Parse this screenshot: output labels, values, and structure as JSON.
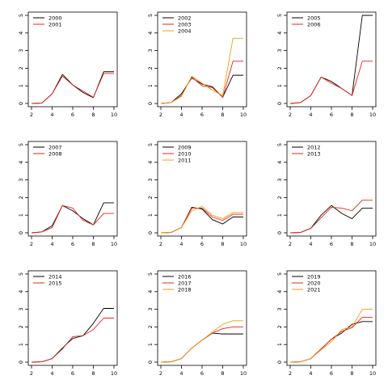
{
  "colors": {
    "black": "#000000",
    "red": "#e8241b",
    "orange": "#f39c12"
  },
  "chart_data": [
    {
      "type": "line",
      "x": [
        2,
        3,
        4,
        5,
        6,
        7,
        8,
        9,
        10
      ],
      "xlim": [
        2,
        10
      ],
      "ylim": [
        0,
        5
      ],
      "xticks": [
        "2",
        "4",
        "6",
        "8",
        "10"
      ],
      "yticks": [
        "0",
        "1",
        "2",
        "3",
        "4",
        "5"
      ],
      "legend": "top-left",
      "series": [
        {
          "name": "2000",
          "color": "#000000",
          "values": [
            0,
            0.02,
            0.55,
            1.65,
            1.05,
            0.62,
            0.33,
            1.8,
            1.8
          ]
        },
        {
          "name": "2001",
          "color": "#e8241b",
          "values": [
            0,
            0.02,
            0.55,
            1.55,
            1.05,
            0.7,
            0.35,
            1.7,
            1.7
          ]
        }
      ]
    },
    {
      "type": "line",
      "x": [
        2,
        3,
        4,
        5,
        6,
        7,
        8,
        9,
        10
      ],
      "xlim": [
        2,
        10
      ],
      "ylim": [
        0,
        5
      ],
      "xticks": [
        "2",
        "4",
        "6",
        "8",
        "10"
      ],
      "yticks": [
        "0",
        "1",
        "2",
        "3",
        "4",
        "5"
      ],
      "legend": "top-left",
      "series": [
        {
          "name": "2002",
          "color": "#000000",
          "values": [
            0,
            0.05,
            0.55,
            1.45,
            1.1,
            0.95,
            0.35,
            1.6,
            1.6
          ]
        },
        {
          "name": "2003",
          "color": "#e8241b",
          "values": [
            0,
            0.05,
            0.45,
            1.5,
            1.0,
            0.9,
            0.35,
            2.4,
            2.4
          ]
        },
        {
          "name": "2004",
          "color": "#f39c12",
          "values": [
            0,
            0.05,
            0.4,
            1.55,
            1.15,
            0.75,
            0.45,
            3.7,
            3.7
          ]
        }
      ]
    },
    {
      "type": "line",
      "x": [
        2,
        3,
        4,
        5,
        6,
        7,
        8,
        9,
        10
      ],
      "xlim": [
        2,
        10
      ],
      "ylim": [
        0,
        5
      ],
      "xticks": [
        "2",
        "4",
        "6",
        "8",
        "10"
      ],
      "yticks": [
        "0",
        "1",
        "2",
        "3",
        "4",
        "5"
      ],
      "legend": "top-left",
      "series": [
        {
          "name": "2005",
          "color": "#000000",
          "values": [
            0,
            0.05,
            0.45,
            1.5,
            1.25,
            0.85,
            0.45,
            5.0,
            5.0
          ]
        },
        {
          "name": "2006",
          "color": "#e8241b",
          "values": [
            0,
            0.05,
            0.45,
            1.5,
            1.15,
            0.85,
            0.45,
            2.4,
            2.4
          ]
        }
      ]
    },
    {
      "type": "line",
      "x": [
        2,
        3,
        4,
        5,
        6,
        7,
        8,
        9,
        10
      ],
      "xlim": [
        2,
        10
      ],
      "ylim": [
        0,
        5
      ],
      "xticks": [
        "2",
        "4",
        "6",
        "8",
        "10"
      ],
      "yticks": [
        "0",
        "1",
        "2",
        "3",
        "4",
        "5"
      ],
      "legend": "top-left",
      "series": [
        {
          "name": "2007",
          "color": "#000000",
          "values": [
            0,
            0.05,
            0.4,
            1.55,
            1.25,
            0.8,
            0.45,
            1.7,
            1.7
          ]
        },
        {
          "name": "2008",
          "color": "#e8241b",
          "values": [
            0,
            0.05,
            0.3,
            1.55,
            1.4,
            0.7,
            0.45,
            1.1,
            1.1
          ]
        }
      ]
    },
    {
      "type": "line",
      "x": [
        2,
        3,
        4,
        5,
        6,
        7,
        8,
        9,
        10
      ],
      "xlim": [
        2,
        10
      ],
      "ylim": [
        0,
        5
      ],
      "xticks": [
        "2",
        "4",
        "6",
        "8",
        "10"
      ],
      "yticks": [
        "0",
        "1",
        "2",
        "3",
        "4",
        "5"
      ],
      "legend": "top-left",
      "series": [
        {
          "name": "2009",
          "color": "#000000",
          "values": [
            0,
            0.02,
            0.3,
            1.45,
            1.35,
            0.75,
            0.5,
            0.9,
            0.9
          ]
        },
        {
          "name": "2010",
          "color": "#e8241b",
          "values": [
            0,
            0.02,
            0.3,
            1.4,
            1.4,
            0.9,
            0.7,
            1.05,
            1.05
          ]
        },
        {
          "name": "2011",
          "color": "#f39c12",
          "values": [
            0,
            0.02,
            0.3,
            1.25,
            1.5,
            1.0,
            0.8,
            1.15,
            1.15
          ]
        }
      ]
    },
    {
      "type": "line",
      "x": [
        2,
        3,
        4,
        5,
        6,
        7,
        8,
        9,
        10
      ],
      "xlim": [
        2,
        10
      ],
      "ylim": [
        0,
        5
      ],
      "xticks": [
        "2",
        "4",
        "6",
        "8",
        "10"
      ],
      "yticks": [
        "0",
        "1",
        "2",
        "3",
        "4",
        "5"
      ],
      "legend": "top-left",
      "series": [
        {
          "name": "2012",
          "color": "#000000",
          "values": [
            0,
            0.02,
            0.25,
            1.0,
            1.55,
            1.1,
            0.8,
            1.4,
            1.4
          ]
        },
        {
          "name": "2013",
          "color": "#e8241b",
          "values": [
            0,
            0.02,
            0.25,
            0.85,
            1.45,
            1.4,
            1.25,
            1.85,
            1.85
          ]
        }
      ]
    },
    {
      "type": "line",
      "x": [
        2,
        3,
        4,
        5,
        6,
        7,
        8,
        9,
        10
      ],
      "xlim": [
        2,
        10
      ],
      "ylim": [
        0,
        5
      ],
      "xticks": [
        "2",
        "4",
        "6",
        "8",
        "10"
      ],
      "yticks": [
        "0",
        "1",
        "2",
        "3",
        "4",
        "5"
      ],
      "legend": "top-left",
      "series": [
        {
          "name": "2014",
          "color": "#000000",
          "values": [
            0,
            0.02,
            0.2,
            0.8,
            1.35,
            1.5,
            2.2,
            3.05,
            3.05
          ]
        },
        {
          "name": "2015",
          "color": "#e8241b",
          "values": [
            0,
            0.02,
            0.2,
            0.75,
            1.45,
            1.5,
            1.85,
            2.5,
            2.5
          ]
        }
      ]
    },
    {
      "type": "line",
      "x": [
        2,
        3,
        4,
        5,
        6,
        7,
        8,
        9,
        10
      ],
      "xlim": [
        2,
        10
      ],
      "ylim": [
        0,
        5
      ],
      "xticks": [
        "2",
        "4",
        "6",
        "8",
        "10"
      ],
      "yticks": [
        "0",
        "1",
        "2",
        "3",
        "4",
        "5"
      ],
      "legend": "top-left",
      "series": [
        {
          "name": "2016",
          "color": "#000000",
          "values": [
            0,
            0.02,
            0.2,
            0.8,
            1.25,
            1.65,
            1.6,
            1.6,
            1.6
          ]
        },
        {
          "name": "2017",
          "color": "#e8241b",
          "values": [
            0,
            0.02,
            0.2,
            0.8,
            1.25,
            1.65,
            1.9,
            2.0,
            2.0
          ]
        },
        {
          "name": "2018",
          "color": "#f39c12",
          "values": [
            0,
            0.02,
            0.2,
            0.8,
            1.25,
            1.7,
            2.15,
            2.35,
            2.35
          ]
        }
      ]
    },
    {
      "type": "line",
      "x": [
        2,
        3,
        4,
        5,
        6,
        7,
        8,
        9,
        10
      ],
      "xlim": [
        2,
        10
      ],
      "ylim": [
        0,
        5
      ],
      "xticks": [
        "2",
        "4",
        "6",
        "8",
        "10"
      ],
      "yticks": [
        "0",
        "1",
        "2",
        "3",
        "4",
        "5"
      ],
      "legend": "top-left",
      "series": [
        {
          "name": "2019",
          "color": "#000000",
          "values": [
            0,
            0.02,
            0.2,
            0.75,
            1.3,
            1.65,
            2.15,
            2.3,
            2.3
          ]
        },
        {
          "name": "2020",
          "color": "#e8241b",
          "values": [
            0,
            0.02,
            0.2,
            0.75,
            1.3,
            1.75,
            1.95,
            2.55,
            2.55
          ]
        },
        {
          "name": "2021",
          "color": "#f39c12",
          "values": [
            0,
            0.02,
            0.2,
            0.7,
            1.15,
            1.85,
            2.0,
            3.0,
            3.0
          ]
        }
      ]
    }
  ]
}
